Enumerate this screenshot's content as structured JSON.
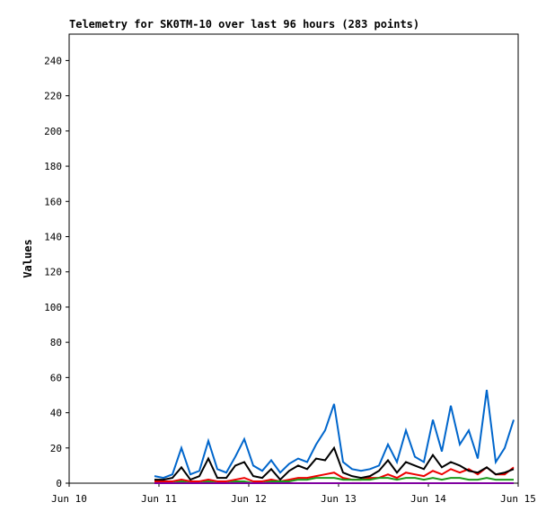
{
  "chart_data": {
    "type": "line",
    "title": "Telemetry for SK0TM-10 over last 96 hours (283 points)",
    "y_label": "Values",
    "xlim": [
      0,
      5
    ],
    "xticks": [
      {
        "value": 0,
        "label": "Jun 10"
      },
      {
        "value": 1,
        "label": "Jun 11"
      },
      {
        "value": 2,
        "label": "Jun 12"
      },
      {
        "value": 3,
        "label": "Jun 13"
      },
      {
        "value": 4,
        "label": "Jun 14"
      },
      {
        "value": 5,
        "label": "Jun 15"
      }
    ],
    "ylim": [
      0,
      255
    ],
    "yticks": [
      0,
      20,
      40,
      60,
      80,
      100,
      120,
      140,
      160,
      180,
      200,
      220,
      240
    ],
    "x": [
      0.95,
      1.05,
      1.15,
      1.25,
      1.35,
      1.45,
      1.55,
      1.65,
      1.75,
      1.85,
      1.95,
      2.05,
      2.15,
      2.25,
      2.35,
      2.45,
      2.55,
      2.65,
      2.75,
      2.85,
      2.95,
      3.05,
      3.15,
      3.25,
      3.35,
      3.45,
      3.55,
      3.65,
      3.75,
      3.85,
      3.95,
      4.05,
      4.15,
      4.25,
      4.35,
      4.45,
      4.55,
      4.65,
      4.75,
      4.85,
      4.95
    ],
    "series": [
      {
        "color": "#0066cc",
        "values": [
          4,
          3,
          5,
          20,
          5,
          7,
          24,
          8,
          6,
          15,
          25,
          10,
          7,
          13,
          6,
          11,
          14,
          12,
          22,
          30,
          45,
          12,
          8,
          7,
          8,
          10,
          22,
          12,
          30,
          15,
          12,
          36,
          18,
          44,
          22,
          30,
          14,
          53,
          12,
          20,
          36
        ]
      },
      {
        "color": "#ee0000",
        "values": [
          1,
          1,
          1,
          2,
          1,
          1,
          2,
          1,
          1,
          2,
          3,
          1,
          1,
          2,
          1,
          2,
          3,
          3,
          4,
          5,
          6,
          3,
          2,
          2,
          3,
          3,
          5,
          3,
          6,
          5,
          4,
          7,
          5,
          8,
          6,
          8,
          5,
          9,
          5,
          5,
          9
        ]
      },
      {
        "color": "#1a9a1a",
        "values": [
          0,
          0,
          0,
          1,
          0,
          0,
          1,
          0,
          0,
          1,
          1,
          0,
          0,
          1,
          1,
          1,
          2,
          2,
          3,
          3,
          3,
          2,
          2,
          2,
          2,
          3,
          3,
          2,
          3,
          3,
          2,
          3,
          2,
          3,
          3,
          2,
          2,
          3,
          2,
          2,
          2
        ]
      },
      {
        "color": "#8000a0",
        "values": [
          0,
          0,
          0,
          0,
          0,
          0,
          0,
          0,
          0,
          0,
          0,
          0,
          0,
          0,
          0,
          0,
          0,
          0,
          0,
          0,
          0,
          0,
          0,
          0,
          0,
          0,
          0,
          0,
          0,
          0,
          0,
          0,
          0,
          0,
          0,
          0,
          0,
          0,
          0,
          0,
          0
        ]
      },
      {
        "color": "#000000",
        "values": [
          2,
          2,
          3,
          9,
          2,
          4,
          14,
          3,
          3,
          10,
          12,
          4,
          3,
          8,
          2,
          7,
          10,
          8,
          14,
          13,
          20,
          6,
          4,
          3,
          4,
          7,
          13,
          6,
          12,
          10,
          8,
          16,
          9,
          12,
          10,
          7,
          6,
          9,
          5,
          6,
          8
        ]
      }
    ]
  }
}
